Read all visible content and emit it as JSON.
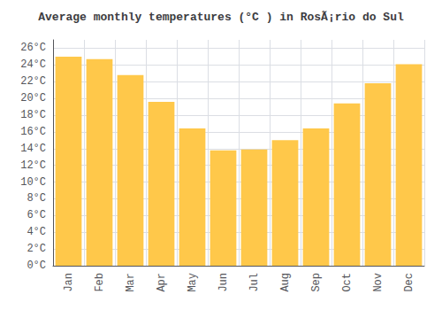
{
  "chart_data": {
    "type": "bar",
    "title": "Average monthly temperatures (°C ) in RosÃ¡rio do Sul",
    "categories": [
      "Jan",
      "Feb",
      "Mar",
      "Apr",
      "May",
      "Jun",
      "Jul",
      "Aug",
      "Sep",
      "Oct",
      "Nov",
      "Dec"
    ],
    "values": [
      25.0,
      24.7,
      22.8,
      19.6,
      16.4,
      13.8,
      13.9,
      15.0,
      16.4,
      19.4,
      21.8,
      24.1
    ],
    "color": "#FFC84A",
    "ylim": [
      0,
      27
    ],
    "yticks": [
      {
        "value": 0,
        "label": "0°C"
      },
      {
        "value": 2,
        "label": "2°C"
      },
      {
        "value": 4,
        "label": "4°C"
      },
      {
        "value": 6,
        "label": "6°C"
      },
      {
        "value": 8,
        "label": "8°C"
      },
      {
        "value": 10,
        "label": "10°C"
      },
      {
        "value": 12,
        "label": "12°C"
      },
      {
        "value": 14,
        "label": "14°C"
      },
      {
        "value": 16,
        "label": "16°C"
      },
      {
        "value": 18,
        "label": "18°C"
      },
      {
        "value": 20,
        "label": "20°C"
      },
      {
        "value": 22,
        "label": "22°C"
      },
      {
        "value": 24,
        "label": "24°C"
      },
      {
        "value": 26,
        "label": "26°C"
      }
    ],
    "grid": true
  }
}
